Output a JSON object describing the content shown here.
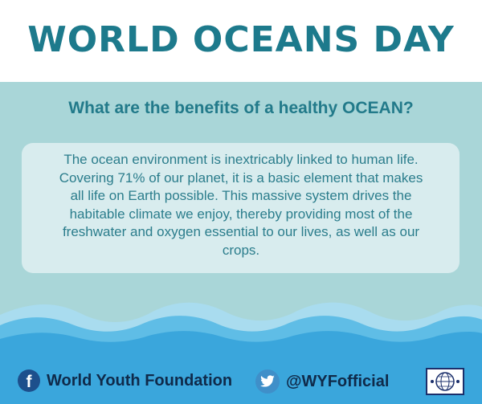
{
  "header": {
    "title": "WORLD OCEANS DAY"
  },
  "question": "What are the benefits of a healthy OCEAN?",
  "card": {
    "lines": [
      "The ocean environment is inextricably linked to human life.",
      "Covering 71% of our planet, it is a basic element that makes",
      "all life on Earth possible. This massive system drives the",
      "habitable climate we enjoy, thereby providing most of the",
      "freshwater and oxygen essential to our lives, as well as our",
      "crops."
    ]
  },
  "footer": {
    "facebook": {
      "icon": "facebook-icon",
      "label": "World Youth Foundation"
    },
    "twitter": {
      "icon": "twitter-icon",
      "label": "@WYFofficial"
    },
    "logo": {
      "icon": "world-youth-foundation-logo"
    }
  },
  "colors": {
    "title": "#1d7a8c",
    "panel": "#a9d6d8",
    "card": "#d8ecee",
    "wave_light": "#a9dcef",
    "wave_mid": "#5fbde6",
    "wave_deep": "#3aa6dc",
    "footer_text": "#0f2a4a"
  }
}
